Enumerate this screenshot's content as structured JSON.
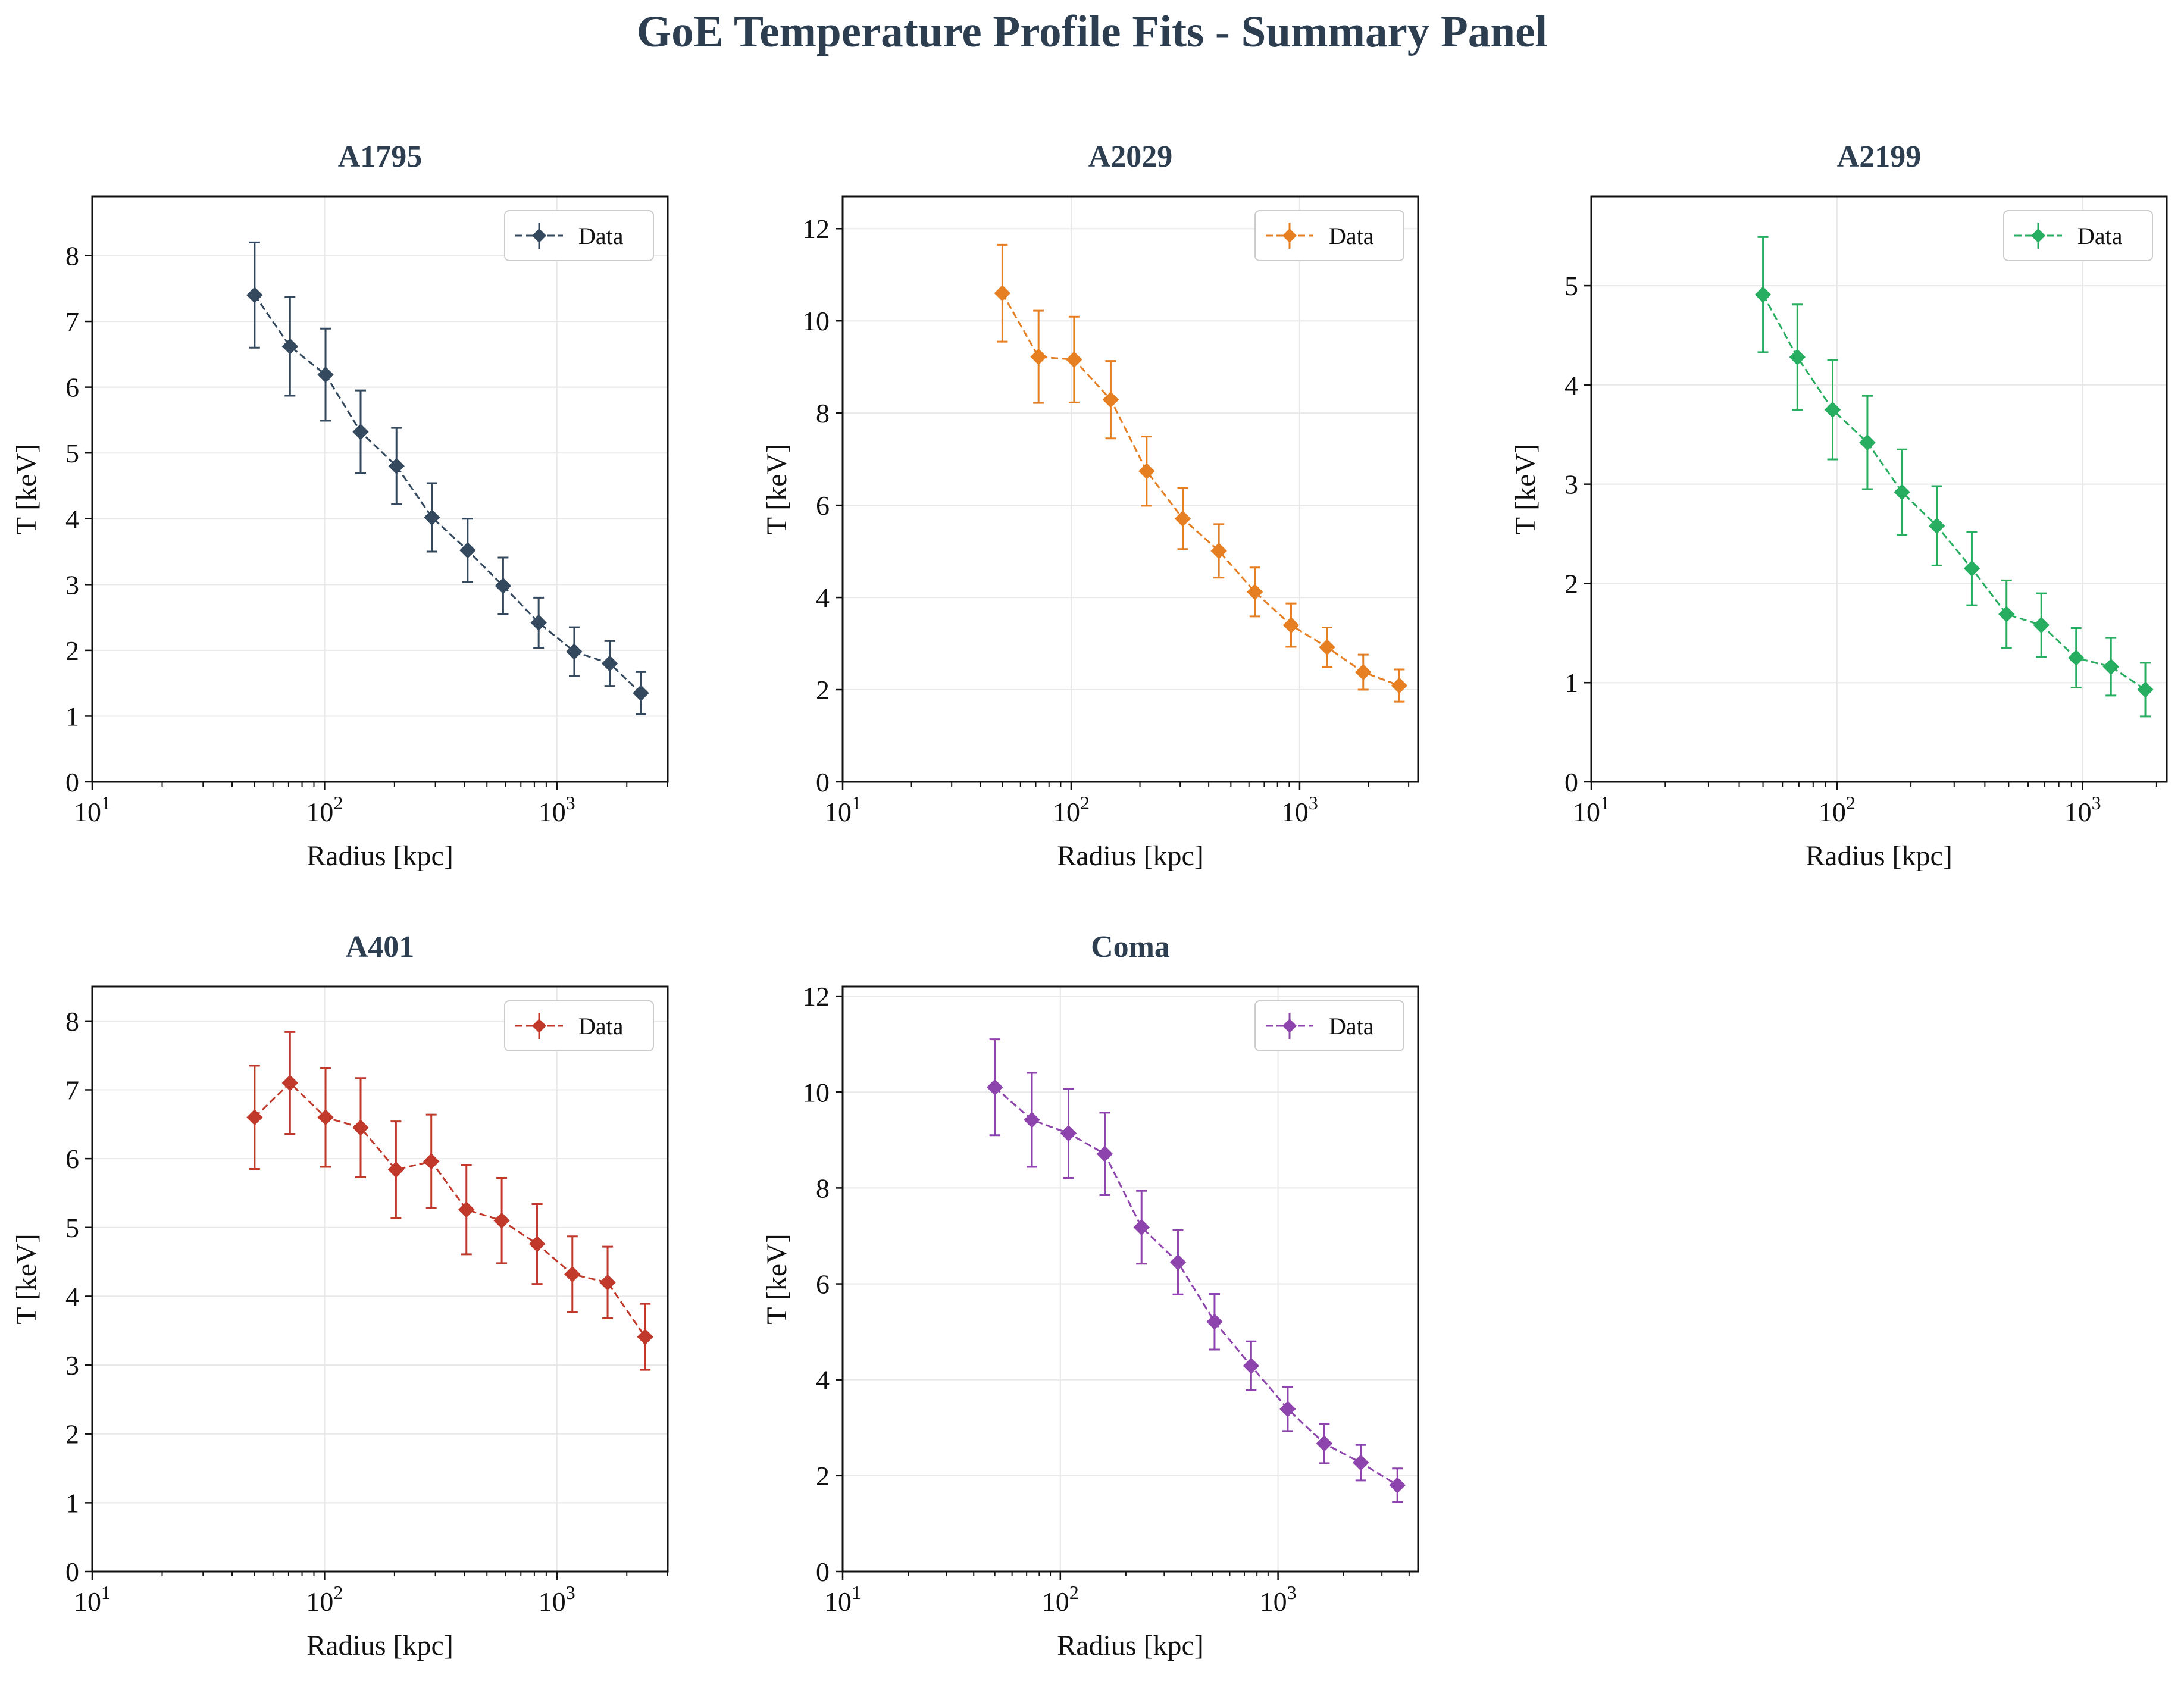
{
  "figure": {
    "title": "GoE Temperature Profile Fits - Summary Panel"
  },
  "chart_data": [
    {
      "type": "line",
      "title": "A1795",
      "xlabel": "Radius [kpc]",
      "ylabel": "T [keV]",
      "xscale": "log",
      "xlim": [
        10,
        3000
      ],
      "ylim": [
        0,
        8.9
      ],
      "yticks": [
        0,
        1,
        2,
        3,
        4,
        5,
        6,
        7,
        8
      ],
      "xticks": [
        "10^1",
        "10^2",
        "10^3"
      ],
      "grid": true,
      "legend_position": "top-right",
      "color": "#34495e",
      "series": [
        {
          "name": "Data",
          "x": [
            50,
            71,
            101,
            143,
            204,
            290,
            413,
            587,
            835,
            1188,
            1689,
            2300
          ],
          "y": [
            7.4,
            6.62,
            6.19,
            5.32,
            4.8,
            4.02,
            3.52,
            2.98,
            2.42,
            1.98,
            1.8,
            1.35
          ],
          "yerr": [
            0.8,
            0.75,
            0.7,
            0.63,
            0.58,
            0.52,
            0.48,
            0.43,
            0.38,
            0.37,
            0.34,
            0.32
          ]
        }
      ]
    },
    {
      "type": "line",
      "title": "A2029",
      "xlabel": "Radius [kpc]",
      "ylabel": "T [keV]",
      "xscale": "log",
      "xlim": [
        10,
        3300
      ],
      "ylim": [
        0,
        12.7
      ],
      "yticks": [
        0,
        2,
        4,
        6,
        8,
        10,
        12
      ],
      "xticks": [
        "10^1",
        "10^2",
        "10^3"
      ],
      "grid": true,
      "legend_position": "top-right",
      "color": "#e67e22",
      "series": [
        {
          "name": "Data",
          "x": [
            50,
            72,
            103,
            149,
            214,
            308,
            443,
            637,
            917,
            1319,
            1898,
            2730
          ],
          "y": [
            10.6,
            9.22,
            9.16,
            8.29,
            6.74,
            5.71,
            5.01,
            4.12,
            3.4,
            2.92,
            2.38,
            2.09
          ],
          "yerr": [
            1.05,
            1.0,
            0.93,
            0.84,
            0.75,
            0.66,
            0.58,
            0.53,
            0.47,
            0.43,
            0.38,
            0.35
          ]
        }
      ]
    },
    {
      "type": "line",
      "title": "A2199",
      "xlabel": "Radius [kpc]",
      "ylabel": "T [keV]",
      "xscale": "log",
      "xlim": [
        10,
        2200
      ],
      "ylim": [
        0,
        5.9
      ],
      "yticks": [
        0,
        1,
        2,
        3,
        4,
        5
      ],
      "xticks": [
        "10^1",
        "10^2",
        "10^3"
      ],
      "grid": true,
      "legend_position": "top-right",
      "color": "#27ae60",
      "series": [
        {
          "name": "Data",
          "x": [
            50,
            69,
            96,
            133,
            184,
            255,
            354,
            490,
            679,
            941,
            1304,
            1800
          ],
          "y": [
            4.91,
            4.28,
            3.75,
            3.42,
            2.92,
            2.58,
            2.15,
            1.69,
            1.58,
            1.25,
            1.16,
            0.93
          ],
          "yerr": [
            0.58,
            0.53,
            0.5,
            0.47,
            0.43,
            0.4,
            0.37,
            0.34,
            0.32,
            0.3,
            0.29,
            0.27
          ]
        }
      ]
    },
    {
      "type": "line",
      "title": "A401",
      "xlabel": "Radius [kpc]",
      "ylabel": "T [keV]",
      "xscale": "log",
      "xlim": [
        10,
        3000
      ],
      "ylim": [
        0,
        8.5
      ],
      "yticks": [
        0,
        1,
        2,
        3,
        4,
        5,
        6,
        7,
        8
      ],
      "xticks": [
        "10^1",
        "10^2",
        "10^3"
      ],
      "grid": true,
      "legend_position": "top-right",
      "color": "#c0392b",
      "series": [
        {
          "name": "Data",
          "x": [
            50,
            71,
            101,
            143,
            203,
            288,
            408,
            579,
            822,
            1166,
            1654,
            2400
          ],
          "y": [
            6.6,
            7.1,
            6.6,
            6.45,
            5.84,
            5.96,
            5.26,
            5.1,
            4.76,
            4.32,
            4.2,
            3.41
          ],
          "yerr": [
            0.75,
            0.74,
            0.72,
            0.72,
            0.7,
            0.68,
            0.65,
            0.62,
            0.58,
            0.55,
            0.52,
            0.48
          ]
        }
      ]
    },
    {
      "type": "line",
      "title": "Coma",
      "xlabel": "Radius [kpc]",
      "ylabel": "T [keV]",
      "xscale": "log",
      "xlim": [
        10,
        4400
      ],
      "ylim": [
        0,
        12.2
      ],
      "yticks": [
        0,
        2,
        4,
        6,
        8,
        10,
        12
      ],
      "xticks": [
        "10^1",
        "10^2",
        "10^3"
      ],
      "grid": true,
      "legend_position": "top-right",
      "color": "#8e44ad",
      "series": [
        {
          "name": "Data",
          "x": [
            50,
            74,
            109,
            160,
            236,
            347,
            511,
            752,
            1108,
            1631,
            2401,
            3535
          ],
          "y": [
            10.1,
            9.42,
            9.14,
            8.71,
            7.18,
            6.45,
            5.21,
            4.29,
            3.39,
            2.67,
            2.27,
            1.8
          ],
          "yerr": [
            1.0,
            0.98,
            0.93,
            0.86,
            0.76,
            0.67,
            0.58,
            0.51,
            0.46,
            0.41,
            0.37,
            0.35
          ]
        }
      ]
    }
  ]
}
